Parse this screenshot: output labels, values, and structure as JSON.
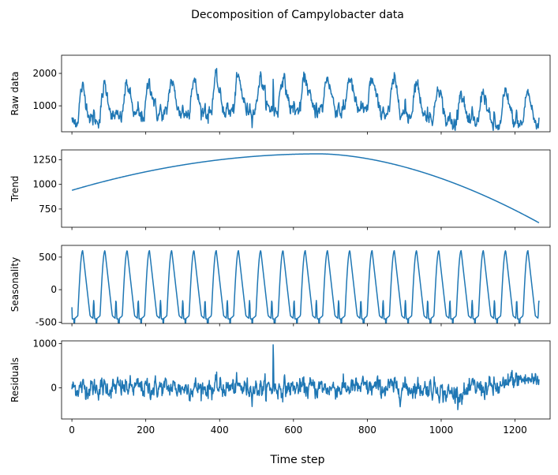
{
  "figure": {
    "title": "Decomposition of Campylobacter data",
    "xlabel": "Time step"
  },
  "chart_data": [
    {
      "type": "line",
      "ylabel": "Raw data",
      "xlim": [
        -28,
        1295
      ],
      "ylim": [
        200,
        2560
      ],
      "xticks": [
        0,
        200,
        400,
        600,
        800,
        1000,
        1200
      ],
      "show_xtick_labels": false,
      "yticks": [
        1000,
        2000
      ],
      "series": [
        {
          "color": "#1f77b4",
          "kind": "raw",
          "n": 1266
        }
      ]
    },
    {
      "type": "line",
      "ylabel": "Trend",
      "xlim": [
        -28,
        1295
      ],
      "ylim": [
        565,
        1350
      ],
      "xticks": [
        0,
        200,
        400,
        600,
        800,
        1000,
        1200
      ],
      "show_xtick_labels": false,
      "yticks": [
        750,
        1000,
        1250
      ],
      "series": [
        {
          "color": "#1f77b4",
          "kind": "trend",
          "n": 1266
        }
      ]
    },
    {
      "type": "line",
      "ylabel": "Seasonality",
      "xlim": [
        -28,
        1295
      ],
      "ylim": [
        -520,
        680
      ],
      "xticks": [
        0,
        200,
        400,
        600,
        800,
        1000,
        1200
      ],
      "show_xtick_labels": false,
      "yticks": [
        -500,
        0,
        500
      ],
      "series": [
        {
          "color": "#1f77b4",
          "kind": "seasonal",
          "n": 1266
        }
      ]
    },
    {
      "type": "line",
      "ylabel": "Residuals",
      "xlim": [
        -28,
        1295
      ],
      "ylim": [
        -700,
        1060
      ],
      "xticks": [
        0,
        200,
        400,
        600,
        800,
        1000,
        1200
      ],
      "show_xtick_labels": true,
      "yticks": [
        0,
        1000
      ],
      "series": [
        {
          "color": "#1f77b4",
          "kind": "resid",
          "n": 1266
        }
      ]
    }
  ]
}
